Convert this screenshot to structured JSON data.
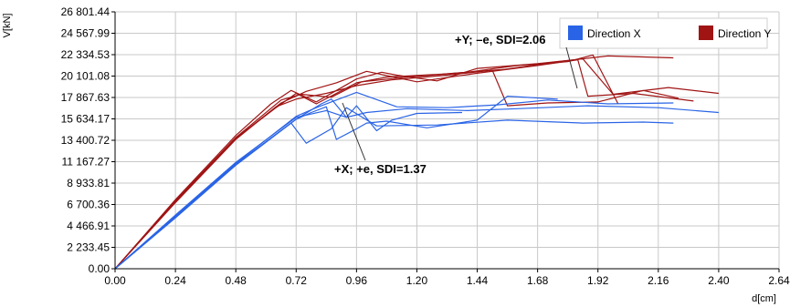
{
  "chart_data": {
    "type": "line",
    "title": "",
    "xlabel": "d[cm]",
    "ylabel": "V[kN]",
    "xlim": [
      0,
      2.64
    ],
    "ylim": [
      0,
      26801.44
    ],
    "x_ticks": [
      "0.00",
      "0.24",
      "0.48",
      "0.72",
      "0.96",
      "1.20",
      "1.44",
      "1.68",
      "1.92",
      "2.16",
      "2.40",
      "2.64"
    ],
    "y_ticks": [
      "0.00",
      "2 233.45",
      "4 466.91",
      "6 700.36",
      "8 933.81",
      "11 167.27",
      "13 400.72",
      "15 634.17",
      "17 867.63",
      "20 101.08",
      "22 334.53",
      "24 567.99",
      "26 801.44"
    ],
    "x_tick_values": [
      0,
      0.24,
      0.48,
      0.72,
      0.96,
      1.2,
      1.44,
      1.68,
      1.92,
      2.16,
      2.4,
      2.64
    ],
    "y_tick_values": [
      0,
      2233.45,
      4466.91,
      6700.36,
      8933.81,
      11167.27,
      13400.72,
      15634.17,
      17867.63,
      20101.08,
      22334.53,
      24567.99,
      26801.44
    ],
    "grid": true,
    "legend_position": "top-right",
    "legend": [
      {
        "label": "Direction X",
        "color": "#2a64e6"
      },
      {
        "label": "Direction Y",
        "color": "#a01414"
      }
    ],
    "annotations": [
      {
        "text": "+Y; –e, SDI=2.06",
        "arrow_to": [
          1.86,
          17600
        ]
      },
      {
        "text": "+X; +e, SDI=1.37",
        "arrow_to": [
          0.94,
          16800
        ]
      }
    ],
    "series": [
      {
        "group": "Direction Y",
        "color": "#a01414",
        "x": [
          0,
          0.24,
          0.48,
          0.64,
          0.72,
          0.8,
          0.96,
          1.08,
          1.3,
          1.55,
          1.76,
          1.96,
          2.22
        ],
        "y": [
          0,
          7000,
          13600,
          16800,
          18300,
          17200,
          19400,
          20000,
          20300,
          20800,
          21600,
          22200,
          22000
        ]
      },
      {
        "group": "Direction Y",
        "color": "#a01414",
        "x": [
          0,
          0.24,
          0.48,
          0.62,
          0.7,
          0.8,
          0.96,
          1.06,
          1.12,
          1.28,
          1.44,
          1.68,
          1.86,
          1.98,
          2.2,
          2.4
        ],
        "y": [
          0,
          7200,
          13900,
          17200,
          18600,
          17400,
          19800,
          20500,
          20200,
          19600,
          20900,
          21400,
          21900,
          18200,
          18900,
          18300
        ]
      },
      {
        "group": "Direction Y",
        "color": "#a01414",
        "x": [
          0,
          0.24,
          0.48,
          0.64,
          0.72,
          0.84,
          0.96,
          1.1,
          1.32,
          1.5,
          1.56,
          1.72,
          1.92,
          2.1,
          2.24
        ],
        "y": [
          0,
          6900,
          13500,
          16900,
          17700,
          18300,
          19100,
          19700,
          20200,
          20700,
          17000,
          17300,
          17400,
          18600,
          17800
        ]
      },
      {
        "group": "Direction Y",
        "color": "#a01414",
        "x": [
          0,
          0.24,
          0.48,
          0.66,
          0.74,
          0.86,
          0.98,
          1.16,
          1.4,
          1.6,
          1.8,
          1.9,
          2.0
        ],
        "y": [
          0,
          7100,
          13700,
          17600,
          18200,
          17900,
          19500,
          20000,
          20500,
          21200,
          21600,
          22300,
          17200
        ]
      },
      {
        "group": "Direction Y",
        "color": "#a01414",
        "x": [
          0,
          0.24,
          0.48,
          0.66,
          0.76,
          0.88,
          1.0,
          1.2,
          1.44,
          1.68,
          1.84,
          1.88,
          2.06,
          2.3
        ],
        "y": [
          0,
          7000,
          13600,
          17300,
          18500,
          19400,
          20600,
          19500,
          20400,
          21200,
          21800,
          18000,
          18300,
          17500
        ]
      },
      {
        "group": "Direction X",
        "color": "#2a64e6",
        "x": [
          0,
          0.24,
          0.48,
          0.72,
          0.82,
          0.86,
          0.92,
          0.96,
          1.04,
          1.1,
          1.2,
          1.38
        ],
        "y": [
          0,
          5400,
          10900,
          15600,
          17200,
          17700,
          15800,
          17000,
          14400,
          15500,
          16200,
          16300
        ]
      },
      {
        "group": "Direction X",
        "color": "#2a64e6",
        "x": [
          0,
          0.24,
          0.48,
          0.72,
          0.8,
          0.88,
          0.96,
          1.12,
          1.32,
          1.52,
          1.72,
          1.96,
          2.22
        ],
        "y": [
          0,
          5500,
          11000,
          15900,
          16800,
          17600,
          18400,
          16900,
          16800,
          17100,
          17600,
          17200,
          17300
        ]
      },
      {
        "group": "Direction X",
        "color": "#2a64e6",
        "x": [
          0,
          0.24,
          0.48,
          0.7,
          0.76,
          0.86,
          0.92,
          1.04,
          1.28,
          1.56,
          1.86,
          2.1,
          2.22
        ],
        "y": [
          0,
          5300,
          10800,
          15200,
          13100,
          14600,
          16800,
          14900,
          15000,
          15500,
          15200,
          15300,
          15200
        ]
      },
      {
        "group": "Direction X",
        "color": "#2a64e6",
        "x": [
          0,
          0.24,
          0.48,
          0.72,
          0.84,
          0.92,
          1.0,
          1.16,
          1.4,
          1.6,
          1.88,
          2.16,
          2.4
        ],
        "y": [
          0,
          5600,
          11100,
          15800,
          16500,
          15800,
          16300,
          16700,
          16500,
          16700,
          17000,
          16800,
          16300
        ]
      },
      {
        "group": "Direction X",
        "color": "#2a64e6",
        "x": [
          0,
          0.24,
          0.48,
          0.72,
          0.78,
          0.84,
          0.88,
          0.96,
          1.0,
          1.08,
          1.24,
          1.44,
          1.56,
          1.76
        ],
        "y": [
          0,
          5500,
          10900,
          15600,
          16300,
          16900,
          13500,
          14600,
          15200,
          15400,
          14700,
          15500,
          18000,
          17700
        ]
      }
    ]
  }
}
